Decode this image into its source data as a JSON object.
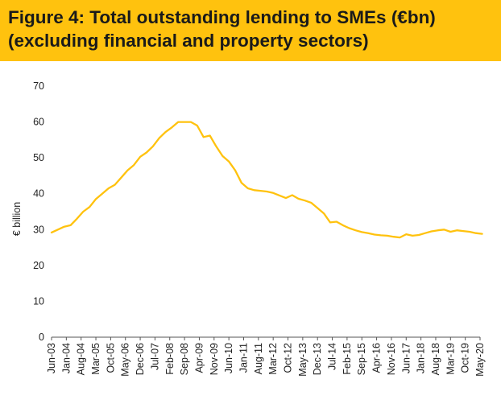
{
  "figure": {
    "title_line1": "Figure 4: Total outstanding lending to SMEs (€bn)",
    "title_line2": "(excluding financial and property sectors)"
  },
  "colors": {
    "header_bg": "#ffc20e",
    "line": "#ffc20e",
    "axis": "#555555",
    "text": "#222222"
  },
  "chart_data": {
    "type": "line",
    "title": "Figure 4: Total outstanding lending to SMEs (€bn) (excluding financial and property sectors)",
    "xlabel": "",
    "ylabel": "€ billion",
    "ylim": [
      0,
      70
    ],
    "yticks": [
      0,
      10,
      20,
      30,
      40,
      50,
      60,
      70
    ],
    "grid": false,
    "legend": "none",
    "x_tick_labels": [
      "Jun-03",
      "Jan-04",
      "Aug-04",
      "Mar-05",
      "Oct-05",
      "May-06",
      "Dec-06",
      "Jul-07",
      "Feb-08",
      "Sep-08",
      "Apr-09",
      "Nov-09",
      "Jun-10",
      "Jan-11",
      "Aug-11",
      "Mar-12",
      "Oct-12",
      "May-13",
      "Dec-13",
      "Jul-14",
      "Feb-15",
      "Sep-15",
      "Apr-16",
      "Nov-16",
      "Jun-17",
      "Jan-18",
      "Aug-18",
      "Mar-19",
      "Oct-19",
      "May-20"
    ],
    "series": [
      {
        "x": [
          "Jun-03",
          "Sep-03",
          "Dec-03",
          "Mar-04",
          "Jun-04",
          "Sep-04",
          "Dec-04",
          "Mar-05",
          "Jun-05",
          "Sep-05",
          "Dec-05",
          "Mar-06",
          "Jun-06",
          "Sep-06",
          "Dec-06",
          "Mar-07",
          "Jun-07",
          "Sep-07",
          "Dec-07",
          "Mar-08",
          "Jun-08",
          "Sep-08",
          "Dec-08",
          "Mar-09",
          "Jun-09",
          "Sep-09",
          "Dec-09",
          "Mar-10",
          "Jun-10",
          "Sep-10",
          "Dec-10",
          "Mar-11",
          "Jun-11",
          "Sep-11",
          "Dec-11",
          "Mar-12",
          "Jun-12",
          "Sep-12",
          "Dec-12",
          "Mar-13",
          "Jun-13",
          "Sep-13",
          "Dec-13",
          "Mar-14",
          "Jun-14",
          "Sep-14",
          "Dec-14",
          "Mar-15",
          "Jun-15",
          "Sep-15",
          "Dec-15",
          "Mar-16",
          "Jun-16",
          "Sep-16",
          "Dec-16",
          "Mar-17",
          "Jun-17",
          "Sep-17",
          "Dec-17",
          "Mar-18",
          "Jun-18",
          "Sep-18",
          "Dec-18",
          "Mar-19",
          "Jun-19",
          "Sep-19",
          "Dec-19",
          "Mar-20",
          "Jun-20"
        ],
        "values": [
          29.2,
          30.0,
          30.8,
          31.2,
          33.0,
          35.0,
          36.3,
          38.5,
          40.0,
          41.5,
          42.5,
          44.5,
          46.5,
          48.0,
          50.3,
          51.5,
          53.2,
          55.5,
          57.2,
          58.5,
          60.0,
          60.0,
          60.0,
          59.0,
          55.8,
          56.2,
          53.2,
          50.5,
          49.0,
          46.5,
          43.0,
          41.5,
          41.0,
          40.8,
          40.6,
          40.2,
          39.5,
          38.8,
          39.6,
          38.6,
          38.1,
          37.5,
          36.0,
          34.5,
          32.0,
          32.2,
          31.2,
          30.4,
          29.8,
          29.3,
          29.0,
          28.6,
          28.4,
          28.3,
          28.0,
          27.8,
          28.7,
          28.3,
          28.5,
          29.0,
          29.5,
          29.8,
          30.0,
          29.4,
          29.8,
          29.6,
          29.4,
          29.0,
          28.8
        ]
      }
    ]
  }
}
